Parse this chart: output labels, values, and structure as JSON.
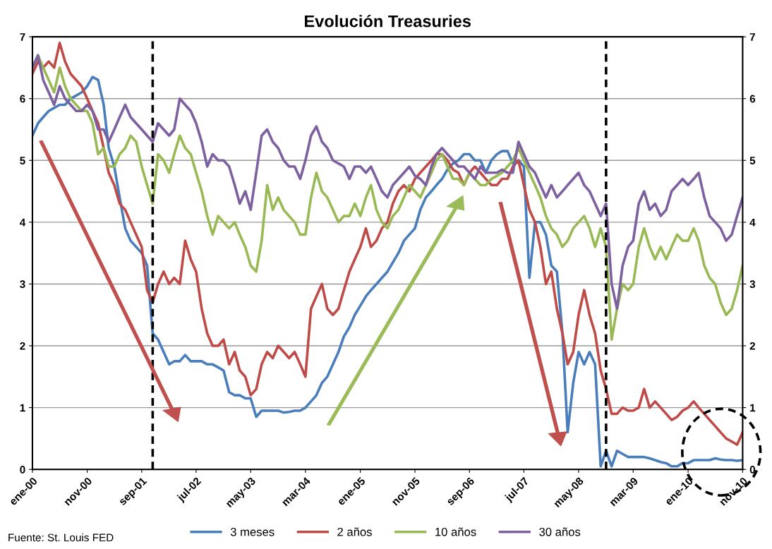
{
  "chart_data": {
    "type": "line",
    "title": "Evolución Treasuries",
    "x": [
      "2000-01",
      "2000-02",
      "2000-03",
      "2000-04",
      "2000-05",
      "2000-06",
      "2000-07",
      "2000-08",
      "2000-09",
      "2000-10",
      "2000-11",
      "2000-12",
      "2001-01",
      "2001-02",
      "2001-03",
      "2001-04",
      "2001-05",
      "2001-06",
      "2001-07",
      "2001-08",
      "2001-09",
      "2001-10",
      "2001-11",
      "2001-12",
      "2002-01",
      "2002-02",
      "2002-03",
      "2002-04",
      "2002-05",
      "2002-06",
      "2002-07",
      "2002-08",
      "2002-09",
      "2002-10",
      "2002-11",
      "2002-12",
      "2003-01",
      "2003-02",
      "2003-03",
      "2003-04",
      "2003-05",
      "2003-06",
      "2003-07",
      "2003-08",
      "2003-09",
      "2003-10",
      "2003-11",
      "2003-12",
      "2004-01",
      "2004-02",
      "2004-03",
      "2004-04",
      "2004-05",
      "2004-06",
      "2004-07",
      "2004-08",
      "2004-09",
      "2004-10",
      "2004-11",
      "2004-12",
      "2005-01",
      "2005-02",
      "2005-03",
      "2005-04",
      "2005-05",
      "2005-06",
      "2005-07",
      "2005-08",
      "2005-09",
      "2005-10",
      "2005-11",
      "2005-12",
      "2006-01",
      "2006-02",
      "2006-03",
      "2006-04",
      "2006-05",
      "2006-06",
      "2006-07",
      "2006-08",
      "2006-09",
      "2006-10",
      "2006-11",
      "2006-12",
      "2007-01",
      "2007-02",
      "2007-03",
      "2007-04",
      "2007-05",
      "2007-06",
      "2007-07",
      "2007-08",
      "2007-09",
      "2007-10",
      "2007-11",
      "2007-12",
      "2008-01",
      "2008-02",
      "2008-03",
      "2008-04",
      "2008-05",
      "2008-06",
      "2008-07",
      "2008-08",
      "2008-09",
      "2008-10",
      "2008-11",
      "2008-12",
      "2009-01",
      "2009-02",
      "2009-03",
      "2009-04",
      "2009-05",
      "2009-06",
      "2009-07",
      "2009-08",
      "2009-09",
      "2009-10",
      "2009-11",
      "2009-12",
      "2010-01",
      "2010-02",
      "2010-03",
      "2010-04",
      "2010-05",
      "2010-06",
      "2010-07",
      "2010-08",
      "2010-09",
      "2010-10",
      "2010-11"
    ],
    "series": [
      {
        "name": "3 meses",
        "color": "#4a7ebb",
        "values": [
          5.4,
          5.6,
          5.7,
          5.8,
          5.85,
          5.9,
          5.9,
          6.0,
          6.05,
          6.1,
          6.2,
          6.35,
          6.3,
          5.9,
          5.2,
          4.9,
          4.4,
          3.9,
          3.7,
          3.6,
          3.5,
          3.3,
          2.2,
          2.1,
          1.9,
          1.7,
          1.75,
          1.75,
          1.85,
          1.75,
          1.75,
          1.75,
          1.7,
          1.7,
          1.65,
          1.6,
          1.25,
          1.2,
          1.2,
          1.15,
          1.15,
          0.85,
          0.95,
          0.95,
          0.95,
          0.95,
          0.92,
          0.93,
          0.95,
          0.95,
          1.0,
          1.1,
          1.2,
          1.4,
          1.5,
          1.7,
          1.9,
          2.15,
          2.3,
          2.5,
          2.65,
          2.8,
          2.9,
          3.0,
          3.1,
          3.2,
          3.35,
          3.5,
          3.7,
          3.8,
          3.9,
          4.2,
          4.4,
          4.5,
          4.6,
          4.7,
          4.85,
          4.95,
          5.0,
          5.1,
          5.1,
          5.0,
          5.0,
          4.8,
          5.0,
          5.1,
          5.15,
          5.15,
          4.95,
          5.0,
          4.9,
          3.1,
          4.0,
          4.0,
          3.8,
          3.3,
          3.2,
          2.2,
          0.6,
          1.4,
          1.9,
          1.7,
          1.9,
          1.7,
          0.05,
          0.3,
          0.05,
          0.3,
          0.25,
          0.2,
          0.2,
          0.2,
          0.2,
          0.18,
          0.15,
          0.12,
          0.1,
          0.05,
          0.05,
          0.1,
          0.1,
          0.15,
          0.15,
          0.15,
          0.15,
          0.18,
          0.16,
          0.15,
          0.15,
          0.14,
          0.15
        ]
      },
      {
        "name": "2 años",
        "color": "#be4b48",
        "values": [
          6.4,
          6.6,
          6.5,
          6.6,
          6.5,
          6.9,
          6.6,
          6.4,
          6.3,
          6.2,
          6.0,
          5.8,
          5.6,
          5.2,
          4.8,
          4.6,
          4.3,
          4.2,
          4.0,
          3.8,
          3.6,
          2.9,
          2.7,
          3.0,
          3.2,
          3.0,
          3.1,
          3.0,
          3.7,
          3.4,
          3.2,
          2.6,
          2.2,
          2.0,
          2.0,
          2.1,
          1.7,
          1.9,
          1.6,
          1.5,
          1.2,
          1.3,
          1.7,
          1.9,
          1.8,
          2.0,
          1.9,
          1.8,
          1.9,
          1.7,
          1.5,
          2.6,
          2.8,
          3.0,
          2.6,
          2.5,
          2.6,
          2.9,
          3.2,
          3.4,
          3.6,
          3.9,
          3.6,
          3.7,
          3.9,
          4.0,
          4.3,
          4.5,
          4.6,
          4.5,
          4.7,
          4.8,
          4.9,
          5.0,
          5.1,
          5.1,
          5.0,
          4.85,
          4.8,
          4.6,
          4.8,
          4.9,
          4.8,
          4.7,
          4.6,
          4.6,
          4.7,
          4.7,
          4.9,
          5.0,
          4.6,
          4.2,
          4.0,
          3.6,
          3.0,
          3.2,
          2.6,
          2.2,
          1.7,
          1.9,
          2.5,
          2.9,
          2.5,
          2.2,
          1.6,
          1.3,
          0.9,
          0.9,
          1.0,
          0.95,
          0.95,
          1.0,
          1.3,
          1.0,
          1.1,
          1.0,
          0.9,
          0.8,
          0.85,
          0.95,
          1.0,
          1.1,
          1.0,
          0.9,
          0.8,
          0.7,
          0.6,
          0.5,
          0.45,
          0.4,
          0.6
        ]
      },
      {
        "name": "10 años",
        "color": "#98b954",
        "values": [
          6.5,
          6.7,
          6.5,
          6.3,
          6.1,
          6.5,
          6.2,
          6.0,
          5.9,
          5.8,
          5.8,
          5.6,
          5.1,
          5.2,
          4.9,
          4.9,
          5.1,
          5.2,
          5.4,
          5.3,
          4.9,
          4.6,
          4.3,
          5.1,
          5.0,
          4.8,
          5.1,
          5.4,
          5.2,
          5.1,
          4.8,
          4.5,
          4.1,
          3.8,
          4.1,
          4.0,
          3.9,
          4.0,
          3.8,
          3.6,
          3.3,
          3.2,
          3.7,
          4.6,
          4.2,
          4.4,
          4.2,
          4.1,
          4.0,
          3.8,
          3.8,
          4.4,
          4.8,
          4.5,
          4.4,
          4.2,
          4.0,
          4.1,
          4.1,
          4.3,
          4.1,
          4.4,
          4.6,
          4.2,
          4.0,
          3.9,
          4.1,
          4.2,
          4.4,
          4.6,
          4.5,
          4.4,
          4.6,
          4.8,
          5.0,
          5.1,
          4.9,
          4.7,
          4.7,
          4.6,
          4.8,
          4.7,
          4.6,
          4.6,
          4.7,
          4.75,
          4.8,
          4.9,
          5.0,
          5.2,
          5.0,
          4.8,
          4.6,
          4.4,
          4.1,
          3.9,
          3.8,
          3.6,
          3.7,
          3.9,
          4.0,
          4.1,
          3.9,
          3.6,
          3.9,
          3.6,
          2.1,
          2.6,
          3.0,
          2.9,
          3.0,
          3.6,
          3.9,
          3.6,
          3.4,
          3.6,
          3.4,
          3.6,
          3.8,
          3.7,
          3.7,
          3.9,
          3.7,
          3.3,
          3.1,
          3.0,
          2.7,
          2.5,
          2.6,
          2.9,
          3.3
        ]
      },
      {
        "name": "30 años",
        "color": "#7d60a0",
        "values": [
          6.5,
          6.7,
          6.3,
          6.1,
          5.9,
          6.2,
          6.0,
          5.9,
          5.8,
          5.8,
          5.9,
          5.8,
          5.5,
          5.5,
          5.3,
          5.5,
          5.7,
          5.9,
          5.7,
          5.6,
          5.5,
          5.4,
          5.3,
          5.6,
          5.5,
          5.4,
          5.5,
          6.0,
          5.9,
          5.8,
          5.6,
          5.3,
          4.9,
          5.1,
          5.0,
          5.0,
          4.9,
          4.6,
          4.3,
          4.5,
          4.2,
          4.8,
          5.4,
          5.5,
          5.3,
          5.2,
          5.0,
          4.9,
          4.9,
          4.7,
          5.0,
          5.4,
          5.55,
          5.3,
          5.2,
          5.0,
          4.95,
          4.9,
          4.7,
          4.9,
          4.9,
          4.8,
          4.9,
          4.7,
          4.5,
          4.4,
          4.6,
          4.7,
          4.8,
          4.9,
          4.75,
          4.7,
          4.6,
          4.9,
          5.1,
          5.2,
          5.1,
          5.0,
          4.9,
          4.9,
          4.8,
          4.7,
          4.9,
          4.8,
          4.8,
          4.8,
          4.85,
          4.8,
          4.8,
          5.3,
          5.1,
          4.9,
          4.8,
          4.6,
          4.4,
          4.6,
          4.4,
          4.5,
          4.6,
          4.7,
          4.8,
          4.6,
          4.5,
          4.3,
          4.1,
          4.3,
          3.0,
          2.6,
          3.3,
          3.6,
          3.7,
          4.3,
          4.5,
          4.2,
          4.3,
          4.1,
          4.2,
          4.5,
          4.6,
          4.7,
          4.6,
          4.7,
          4.8,
          4.4,
          4.1,
          4.0,
          3.9,
          3.7,
          3.8,
          4.1,
          4.4
        ]
      }
    ],
    "xlim": [
      "2000-01",
      "2010-11"
    ],
    "xticks": [
      {
        "value": "2000-01",
        "label": "ene-00"
      },
      {
        "value": "2000-11",
        "label": "nov-00"
      },
      {
        "value": "2001-09",
        "label": "sep-01"
      },
      {
        "value": "2002-07",
        "label": "jul-02"
      },
      {
        "value": "2003-05",
        "label": "may-03"
      },
      {
        "value": "2004-03",
        "label": "mar-04"
      },
      {
        "value": "2005-01",
        "label": "ene-05"
      },
      {
        "value": "2005-11",
        "label": "nov-05"
      },
      {
        "value": "2006-09",
        "label": "sep-06"
      },
      {
        "value": "2007-07",
        "label": "jul-07"
      },
      {
        "value": "2008-05",
        "label": "may-08"
      },
      {
        "value": "2009-03",
        "label": "mar-09"
      },
      {
        "value": "2010-01",
        "label": "ene-10"
      },
      {
        "value": "2010-11",
        "label": "nov-10"
      }
    ],
    "ylim": [
      0,
      7
    ],
    "yticks": [
      0,
      1,
      2,
      3,
      4,
      5,
      6,
      7
    ],
    "y2lim": [
      0,
      7
    ],
    "y2ticks": [
      0,
      1,
      2,
      3,
      4,
      5,
      6,
      7
    ],
    "ref_lines": [
      {
        "axis": "x",
        "value": "2001-11",
        "color": "#000000",
        "line_style": "dashed"
      },
      {
        "axis": "x",
        "value": "2008-10",
        "color": "#000000",
        "line_style": "dashed"
      }
    ],
    "grid": "y",
    "legend": "bottom",
    "marker": "none",
    "line_style": "solid",
    "annotations": [
      "Fuente: St. Louis FED"
    ]
  }
}
